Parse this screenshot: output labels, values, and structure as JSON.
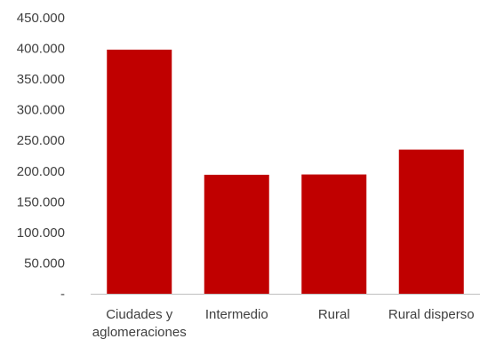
{
  "chart_data": {
    "type": "bar",
    "categories": [
      [
        "Ciudades y",
        "aglomeraciones"
      ],
      [
        "Intermedio"
      ],
      [
        "Rural"
      ],
      [
        "Rural disperso"
      ]
    ],
    "values": [
      398000,
      194000,
      194500,
      235000
    ],
    "ylim": [
      0,
      450000
    ],
    "y_ticks": [
      {
        "value": 0,
        "label": "-"
      },
      {
        "value": 50000,
        "label": "50.000"
      },
      {
        "value": 100000,
        "label": "100.000"
      },
      {
        "value": 150000,
        "label": "150.000"
      },
      {
        "value": 200000,
        "label": "200.000"
      },
      {
        "value": 250000,
        "label": "250.000"
      },
      {
        "value": 300000,
        "label": "300.000"
      },
      {
        "value": 350000,
        "label": "350.000"
      },
      {
        "value": 400000,
        "label": "400.000"
      },
      {
        "value": 450000,
        "label": "450.000"
      }
    ],
    "bar_color": "#c00000",
    "axis_color": "#bfbfbf",
    "grid": false,
    "legend": "none",
    "title": "",
    "xlabel": "",
    "ylabel": ""
  }
}
